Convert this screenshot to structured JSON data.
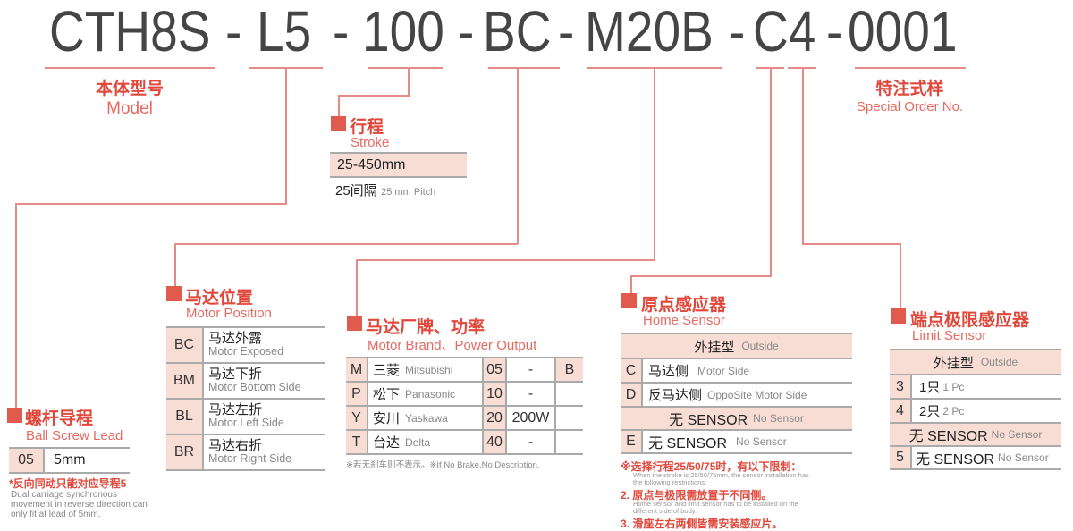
{
  "model_code": {
    "segments": [
      "CTH8S",
      "-",
      "L5",
      "-",
      "100",
      "-",
      "BC",
      "-",
      "M20B",
      "-",
      "C4",
      "-",
      "0001"
    ]
  },
  "colors": {
    "accent": "#e0483c",
    "line": "#e58a84",
    "cell_fill": "#f8ddd4",
    "text": "#454545"
  },
  "model": {
    "cn": "本体型号",
    "en": "Model"
  },
  "special": {
    "cn": "特注式样",
    "en": "Special Order No."
  },
  "stroke": {
    "cn": "行程",
    "en": "Stroke",
    "range": "25-450mm",
    "pitch_cn": "25间隔",
    "pitch_en": "25 mm Pitch"
  },
  "lead": {
    "cn": "螺杆导程",
    "en": "Ball Screw Lead",
    "rows": [
      {
        "code": "05",
        "value": "5mm"
      }
    ],
    "note_cn": "*反向同动只能对应导程5",
    "note_en": [
      "Dual carriage synchronous",
      "movement in reverse direction can",
      "only fit at lead of 5mm."
    ]
  },
  "motor_position": {
    "cn": "马达位置",
    "en": "Motor Position",
    "rows": [
      {
        "code": "BC",
        "cn": "马达外露",
        "en": "Motor Exposed"
      },
      {
        "code": "BM",
        "cn": "马达下折",
        "en": "Motor Bottom Side"
      },
      {
        "code": "BL",
        "cn": "马达左折",
        "en": "Motor Left Side"
      },
      {
        "code": "BR",
        "cn": "马达右折",
        "en": "Motor Right Side"
      }
    ]
  },
  "motor_brand": {
    "cn": "马达厂牌、功率",
    "en": "Motor Brand、Power Output",
    "rows": [
      {
        "code": "M",
        "cn": "三菱",
        "en": "Mitsubishi",
        "pcode": "05",
        "power": "-",
        "brake": "B"
      },
      {
        "code": "P",
        "cn": "松下",
        "en": "Panasonic",
        "pcode": "10",
        "power": "-",
        "brake": ""
      },
      {
        "code": "Y",
        "cn": "安川",
        "en": "Yaskawa",
        "pcode": "20",
        "power": "200W",
        "brake": ""
      },
      {
        "code": "T",
        "cn": "台达",
        "en": "Delta",
        "pcode": "40",
        "power": "-",
        "brake": ""
      }
    ],
    "note": "※若无刹车则不表示。※If No Brake,No Description."
  },
  "home_sensor": {
    "cn": "原点感应器",
    "en": "Home Sensor",
    "h1_cn": "外挂型",
    "h1_en": "Outside",
    "rows1": [
      {
        "code": "C",
        "cn": "马达侧",
        "en": "Motor Side"
      },
      {
        "code": "D",
        "cn": "反马达侧",
        "en": "OppoSite Motor Side"
      }
    ],
    "h2_cn": "无 SENSOR",
    "h2_en": "No Sensor",
    "rows2": [
      {
        "code": "E",
        "cn": "无 SENSOR",
        "en": "No Sensor"
      }
    ],
    "notes": [
      {
        "red": "※选择行程25/50/75时，有以下限制：",
        "grey": [
          "When the stroke is 25/50/75mm, the sensor installation has",
          "the following restrictions:"
        ]
      },
      {
        "red": "2. 原点与极限需放置于不同侧。",
        "grey": [
          "Home sensor and limit sensor has to be installed on the",
          "different side of body."
        ]
      },
      {
        "red": "3. 滑座左右两侧皆需安装感应片。",
        "grey": []
      }
    ]
  },
  "limit_sensor": {
    "cn": "端点极限感应器",
    "en": "Limit Sensor",
    "h1_cn": "外挂型",
    "h1_en": "Outside",
    "rows1": [
      {
        "code": "3",
        "cn": "1只",
        "en": "1 Pc"
      },
      {
        "code": "4",
        "cn": "2只",
        "en": "2 Pc"
      }
    ],
    "h2_cn": "无 SENSOR",
    "h2_en": "No Sensor",
    "rows2": [
      {
        "code": "5",
        "cn": "无 SENSOR",
        "en": "No Sensor"
      }
    ]
  }
}
